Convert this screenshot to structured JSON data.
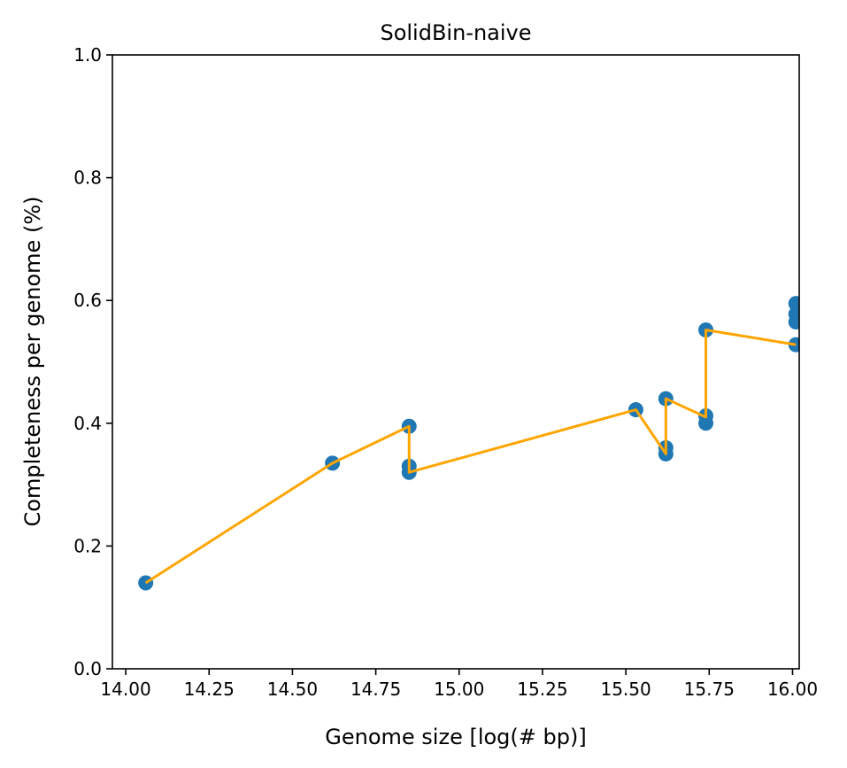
{
  "chart_data": {
    "type": "scatter",
    "title": "SolidBin-naive",
    "xlabel": "Genome size [log(# bp)]",
    "ylabel": "Completeness per genome (%)",
    "xlim": [
      13.96,
      16.02
    ],
    "ylim": [
      0.0,
      1.0
    ],
    "xticks": [
      14.0,
      14.25,
      14.5,
      14.75,
      15.0,
      15.25,
      15.5,
      15.75,
      16.0
    ],
    "xtick_labels": [
      "14.00",
      "14.25",
      "14.50",
      "14.75",
      "15.00",
      "15.25",
      "15.50",
      "15.75",
      "16.00"
    ],
    "yticks": [
      0.0,
      0.2,
      0.4,
      0.6,
      0.8,
      1.0
    ],
    "ytick_labels": [
      "0.0",
      "0.2",
      "0.4",
      "0.6",
      "0.8",
      "1.0"
    ],
    "grid": false,
    "colors": {
      "points": "#1f77b4",
      "line": "#ffa500"
    },
    "points": {
      "x": [
        14.06,
        14.62,
        14.85,
        14.85,
        14.85,
        15.53,
        15.62,
        15.62,
        15.62,
        15.74,
        15.74,
        15.74,
        16.01,
        16.01,
        16.01,
        16.01
      ],
      "y": [
        0.14,
        0.335,
        0.395,
        0.33,
        0.32,
        0.422,
        0.44,
        0.36,
        0.35,
        0.552,
        0.412,
        0.4,
        0.595,
        0.578,
        0.565,
        0.528
      ]
    },
    "line": {
      "x": [
        14.06,
        14.62,
        14.85,
        14.85,
        15.53,
        15.62,
        15.62,
        15.74,
        15.74,
        16.01
      ],
      "y": [
        0.14,
        0.335,
        0.395,
        0.32,
        0.422,
        0.35,
        0.44,
        0.41,
        0.552,
        0.528
      ]
    }
  }
}
